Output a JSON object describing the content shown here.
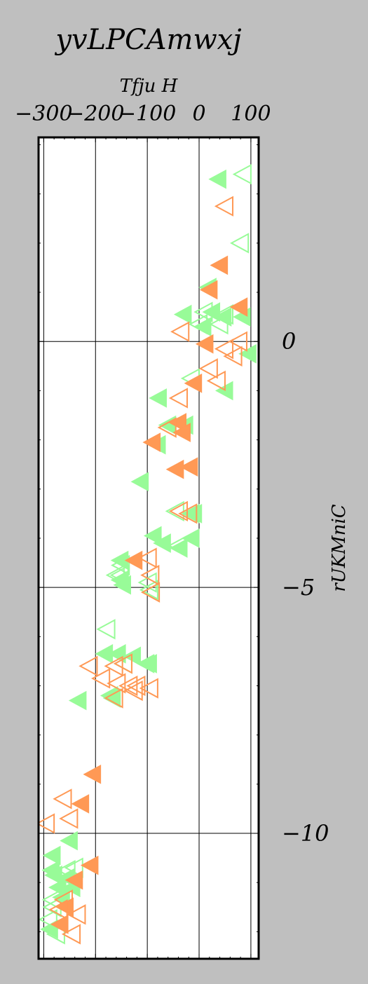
{
  "chart_data": {
    "type": "scatter",
    "title": "yvLPCAmwxj",
    "xlabel": "Tfju H",
    "ylabel": "rUKMniC",
    "xlim": [
      -310,
      115
    ],
    "ylim": [
      -12.55,
      4.15
    ],
    "x_ticks": [
      -300,
      -200,
      -100,
      0,
      100
    ],
    "x_tick_labels": [
      "−300",
      "−200",
      "−100",
      "0",
      "100"
    ],
    "y_ticks": [
      0,
      -5,
      -10
    ],
    "y_tick_labels": [
      "0",
      "−5",
      "−10"
    ],
    "x_axis_position": "top",
    "y_axis_position": "right",
    "grid": true,
    "marker": "left-triangle",
    "colors": {
      "green": "#98fb98",
      "orange": "#ff9955",
      "background": "#bfbfbf",
      "plot_bg": "#ffffff"
    },
    "series": [
      {
        "color": "green",
        "filled": true,
        "x": [
          37,
          95,
          18,
          -30,
          8,
          25,
          47,
          84,
          -78,
          -60,
          -80,
          -27,
          50,
          -113,
          -15,
          -10,
          -88,
          -70,
          -38,
          -15,
          -152,
          -152,
          -147,
          -182,
          -157,
          -128,
          -102,
          -97,
          -172,
          -167,
          -233,
          -283,
          -285,
          -280,
          -272,
          -255,
          -265,
          -250,
          -288,
          -245
        ],
        "y": [
          3.3,
          -0.25,
          1.1,
          0.55,
          0.3,
          0.6,
          0.5,
          0.5,
          -1.15,
          -1.7,
          -2.1,
          -1.7,
          -1,
          -2.85,
          -3.5,
          -3.5,
          -3.95,
          -4.1,
          -4.2,
          -4,
          -4.45,
          -4.85,
          -4.95,
          -6.35,
          -6.35,
          -6.4,
          -6.55,
          -6.55,
          -7.2,
          -7.25,
          -7.3,
          -10.45,
          -10.75,
          -10.85,
          -11.1,
          -10.9,
          -11.3,
          -10.15,
          -11.95,
          -11.1
        ]
      },
      {
        "color": "green",
        "filled": false,
        "x": [
          85,
          80,
          10,
          0,
          50,
          40,
          -15,
          -45,
          -40,
          -150,
          -152,
          -160,
          -98,
          -95,
          -178,
          -145,
          -240,
          -255,
          -283,
          -282,
          -290,
          -275
        ],
        "y": [
          3.4,
          2.0,
          0.6,
          0.35,
          0.55,
          0.35,
          -0.75,
          -3.45,
          -4.15,
          -4.55,
          -4.75,
          -4.75,
          -4.9,
          -5.05,
          -5.85,
          -6.55,
          -10.7,
          -10.75,
          -11.35,
          -11.5,
          -11.75,
          -12.05
        ]
      },
      {
        "color": "orange",
        "filled": true,
        "x": [
          40,
          20,
          78,
          12,
          -10,
          -40,
          -32,
          -90,
          -45,
          -18,
          -125,
          -205,
          -228,
          -210,
          -240,
          -258,
          -268
        ],
        "y": [
          1.55,
          1.05,
          0.7,
          -0.05,
          -0.85,
          -1.65,
          -1.85,
          -2.05,
          -2.6,
          -2.55,
          -4.45,
          -8.8,
          -9.4,
          -10.65,
          -10.95,
          -11.5,
          -11.85
        ],
        "y_note": ""
      },
      {
        "color": "orange",
        "filled": false,
        "x": [
          50,
          -35,
          50,
          77,
          67,
          20,
          35,
          -38,
          -60,
          -38,
          -20,
          -98,
          -93,
          -92,
          -145,
          -163,
          -158,
          -135,
          -163,
          -125,
          -212,
          -188,
          -95,
          -120,
          -262,
          -250,
          -295,
          -260,
          -270,
          -235,
          -245
        ],
        "y": [
          2.75,
          0.2,
          -0.15,
          0,
          -0.3,
          -0.55,
          -0.8,
          -1.15,
          -1.75,
          -3.45,
          -3.5,
          -4.4,
          -4.75,
          -5.1,
          -6.55,
          -6.6,
          -6.95,
          -7.0,
          -7.25,
          -7.1,
          -6.6,
          -6.85,
          -7.05,
          -7.0,
          -9.3,
          -9.7,
          -9.8,
          -11.35,
          -11.55,
          -11.65,
          -12.05
        ]
      }
    ]
  }
}
